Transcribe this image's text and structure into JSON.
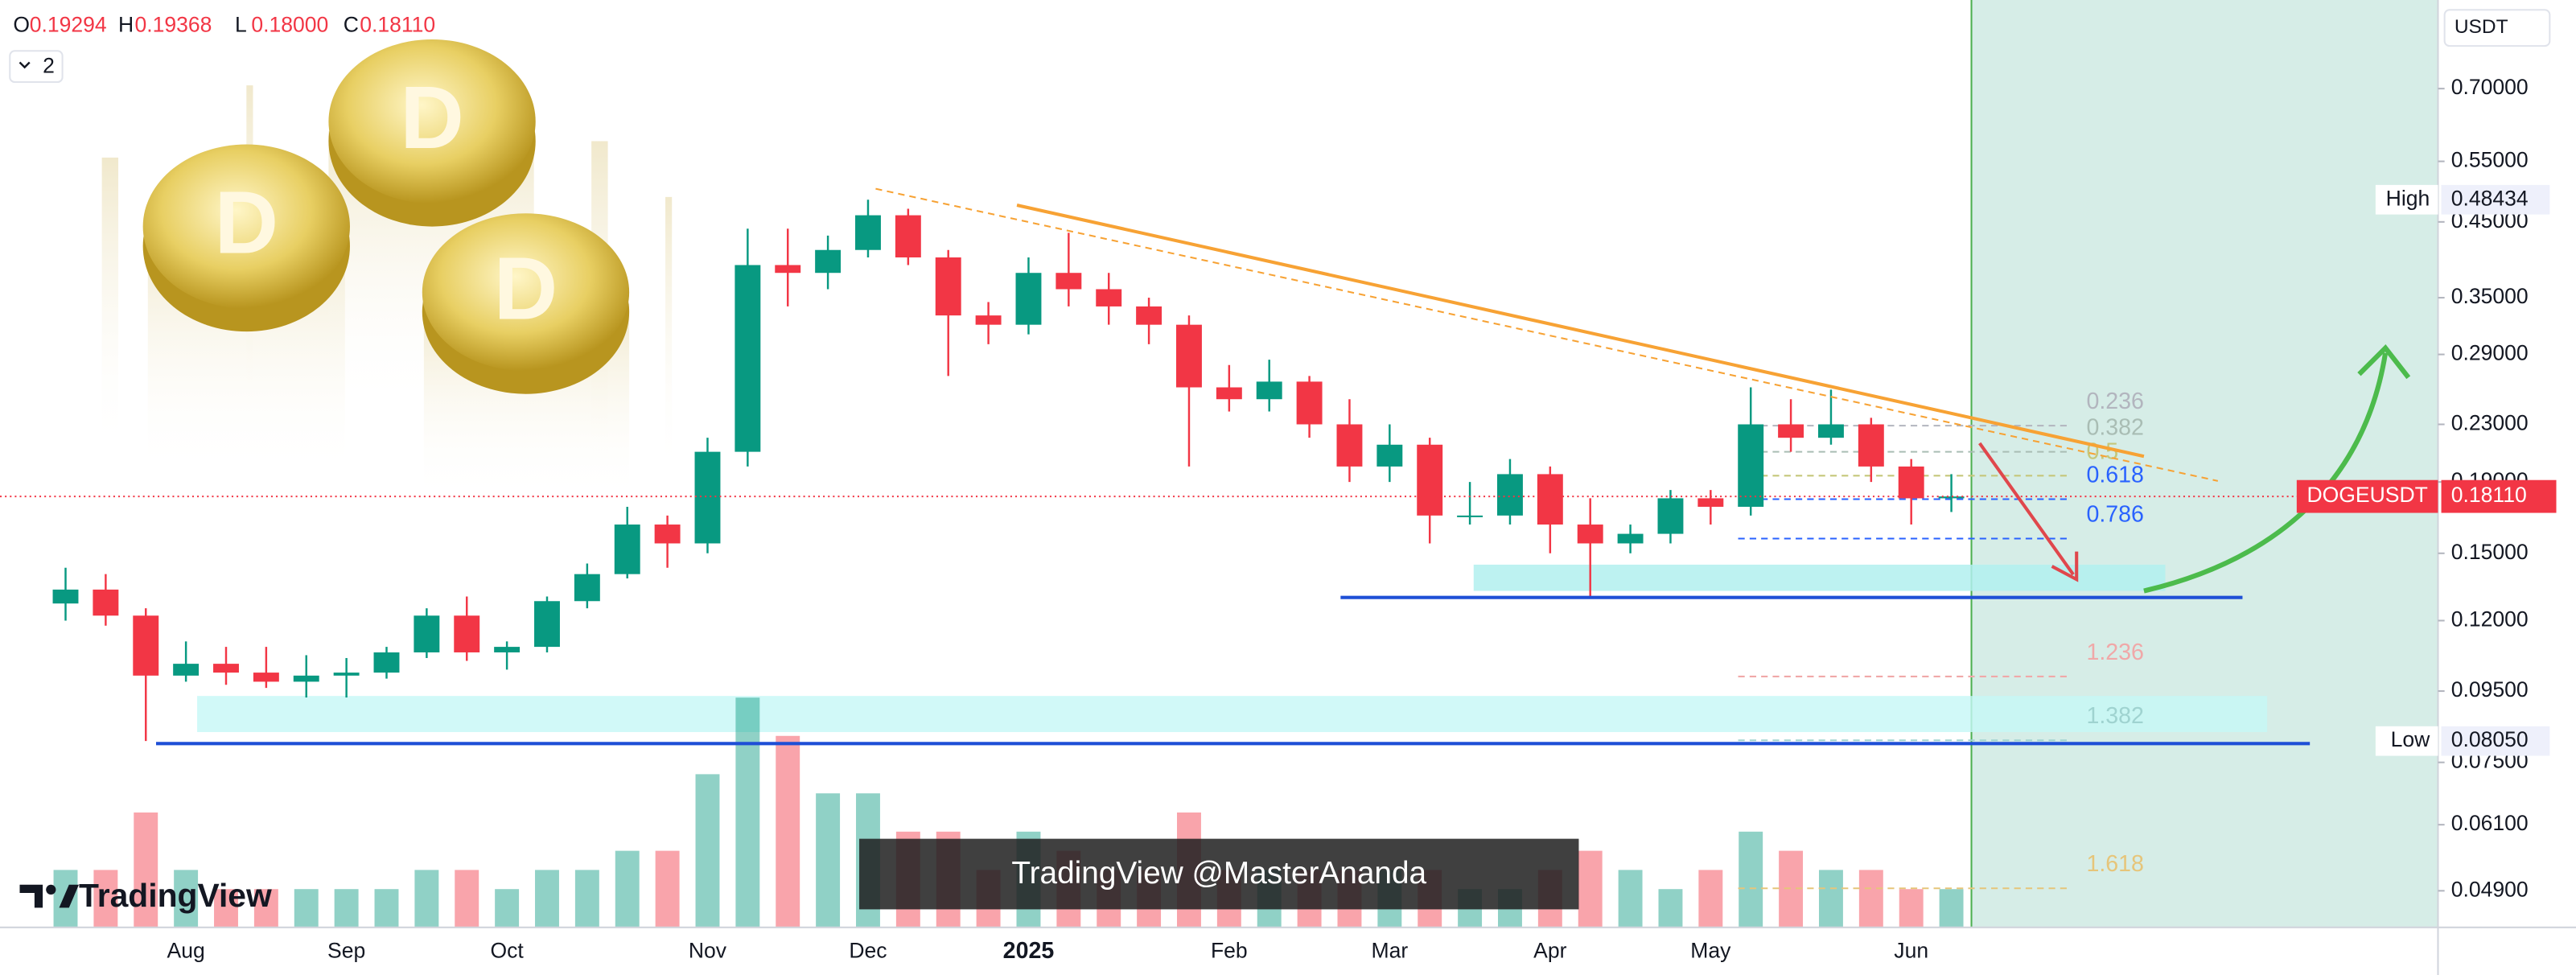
{
  "chart_data": {
    "type": "candlestick",
    "symbol": "DOGEUSDT",
    "currency": "USDT",
    "interval_button": "2",
    "brand": "TradingView",
    "watermark": "TradingView @MasterAnanda",
    "ohlc_header": [
      {
        "name": "O",
        "value": {
          "value": 0.19294,
          "label": "0.19294"
        }
      },
      {
        "name": "H",
        "value": {
          "value": 0.19368,
          "label": "0.19368"
        }
      },
      {
        "name": "L",
        "value": {
          "value": 0.18,
          "label": "0.18000"
        }
      },
      {
        "name": "C",
        "value": {
          "value": 0.1811,
          "label": "0.18110"
        }
      }
    ],
    "categories": [
      null,
      null,
      null,
      "Aug",
      null,
      null,
      null,
      "Sep",
      null,
      null,
      null,
      "Oct",
      null,
      null,
      null,
      null,
      "Nov",
      null,
      null,
      null,
      "Dec",
      null,
      null,
      null,
      "2025",
      null,
      null,
      null,
      null,
      "Feb",
      null,
      null,
      null,
      "Mar",
      null,
      null,
      null,
      "Apr",
      null,
      null,
      null,
      "May",
      null,
      null,
      null,
      null,
      "Jun",
      null
    ],
    "open": [
      0.127,
      0.133,
      0.122,
      0.1,
      0.104,
      0.101,
      0.098,
      0.1,
      0.101,
      0.108,
      0.122,
      0.108,
      0.11,
      0.128,
      0.14,
      0.165,
      0.155,
      0.21,
      0.39,
      0.38,
      0.41,
      0.46,
      0.4,
      0.33,
      0.32,
      0.38,
      0.36,
      0.34,
      0.32,
      0.26,
      0.25,
      0.265,
      0.23,
      0.2,
      0.215,
      0.17,
      0.17,
      0.195,
      0.165,
      0.155,
      0.16,
      0.18,
      0.175,
      0.23,
      0.22,
      0.23,
      0.2,
      0.18
    ],
    "high": [
      0.143,
      0.14,
      0.125,
      0.112,
      0.11,
      0.11,
      0.107,
      0.106,
      0.11,
      0.125,
      0.13,
      0.112,
      0.13,
      0.145,
      0.175,
      0.17,
      0.22,
      0.44,
      0.44,
      0.43,
      0.48434,
      0.47,
      0.41,
      0.345,
      0.4,
      0.434,
      0.38,
      0.35,
      0.33,
      0.28,
      0.285,
      0.27,
      0.25,
      0.23,
      0.22,
      0.19,
      0.205,
      0.2,
      0.18,
      0.165,
      0.185,
      0.185,
      0.26,
      0.25,
      0.258,
      0.235,
      0.205,
      0.195
    ],
    "low": [
      0.12,
      0.118,
      0.0805,
      0.098,
      0.097,
      0.096,
      0.093,
      0.093,
      0.099,
      0.106,
      0.105,
      0.102,
      0.108,
      0.125,
      0.138,
      0.143,
      0.15,
      0.2,
      0.34,
      0.36,
      0.4,
      0.39,
      0.27,
      0.3,
      0.31,
      0.34,
      0.32,
      0.3,
      0.2,
      0.24,
      0.24,
      0.22,
      0.19,
      0.19,
      0.155,
      0.165,
      0.165,
      0.15,
      0.129,
      0.15,
      0.155,
      0.165,
      0.17,
      0.21,
      0.215,
      0.19,
      0.165,
      0.172
    ],
    "close": [
      0.133,
      0.122,
      0.1,
      0.104,
      0.101,
      0.098,
      0.1,
      0.101,
      0.108,
      0.122,
      0.108,
      0.11,
      0.128,
      0.14,
      0.165,
      0.155,
      0.21,
      0.39,
      0.38,
      0.41,
      0.46,
      0.4,
      0.33,
      0.32,
      0.38,
      0.36,
      0.34,
      0.32,
      0.26,
      0.25,
      0.265,
      0.23,
      0.2,
      0.215,
      0.17,
      0.17,
      0.195,
      0.165,
      0.155,
      0.16,
      0.18,
      0.175,
      0.23,
      0.22,
      0.23,
      0.2,
      0.18,
      0.1811
    ],
    "volume": [
      3,
      3,
      6,
      3,
      2,
      2,
      2,
      2,
      2,
      3,
      3,
      2,
      3,
      3,
      4,
      4,
      8,
      12,
      10,
      7,
      7,
      5,
      5,
      3,
      5,
      4,
      3,
      3,
      6,
      3,
      3,
      3,
      3,
      3,
      3,
      2,
      2,
      3,
      4,
      3,
      2,
      3,
      5,
      4,
      3,
      3,
      2,
      2
    ],
    "colors": {
      "up": "#089981",
      "down": "#f23645"
    },
    "log_scale": true,
    "ylim": [
      0.0434,
      0.939
    ],
    "yticks": [
      {
        "value": 0.7,
        "label": "0.70000"
      },
      {
        "value": 0.55,
        "label": "0.55000"
      },
      {
        "value": 0.45,
        "label": "0.45000"
      },
      {
        "value": 0.35,
        "label": "0.35000"
      },
      {
        "value": 0.29,
        "label": "0.29000"
      },
      {
        "value": 0.23,
        "label": "0.23000"
      },
      {
        "value": 0.19,
        "label": "0.19000"
      },
      {
        "value": 0.15,
        "label": "0.15000"
      },
      {
        "value": 0.12,
        "label": "0.12000"
      },
      {
        "value": 0.095,
        "label": "0.09500"
      },
      {
        "value": 0.075,
        "label": "0.07500"
      },
      {
        "value": 0.061,
        "label": "0.06100"
      },
      {
        "value": 0.049,
        "label": "0.04900"
      }
    ],
    "last_price": {
      "value": 0.1811,
      "label": "0.18110"
    },
    "high_marker": {
      "name": "High",
      "value": 0.48434
    },
    "low_marker": {
      "name": "Low",
      "value": 0.0805,
      "label": "0.08050"
    },
    "fib_levels": [
      {
        "ratio": 0.236,
        "price": 0.229,
        "color": "#b2b5be"
      },
      {
        "ratio": 0.382,
        "price": 0.21,
        "color": "#a9bdb4"
      },
      {
        "ratio": 0.5,
        "price": 0.194,
        "color": "#c5c77a"
      },
      {
        "ratio": 0.618,
        "price": 0.1795,
        "color": "#2962ff"
      },
      {
        "ratio": 0.786,
        "price": 0.1575,
        "color": "#2962ff"
      },
      {
        "ratio": 1.236,
        "price": 0.0997,
        "color": "#f0a8a8"
      },
      {
        "ratio": 1.382,
        "price": 0.0807,
        "color": "#9fd3d0"
      },
      {
        "ratio": 1.618,
        "price": 0.0494,
        "color": "#e6c57a"
      }
    ]
  }
}
